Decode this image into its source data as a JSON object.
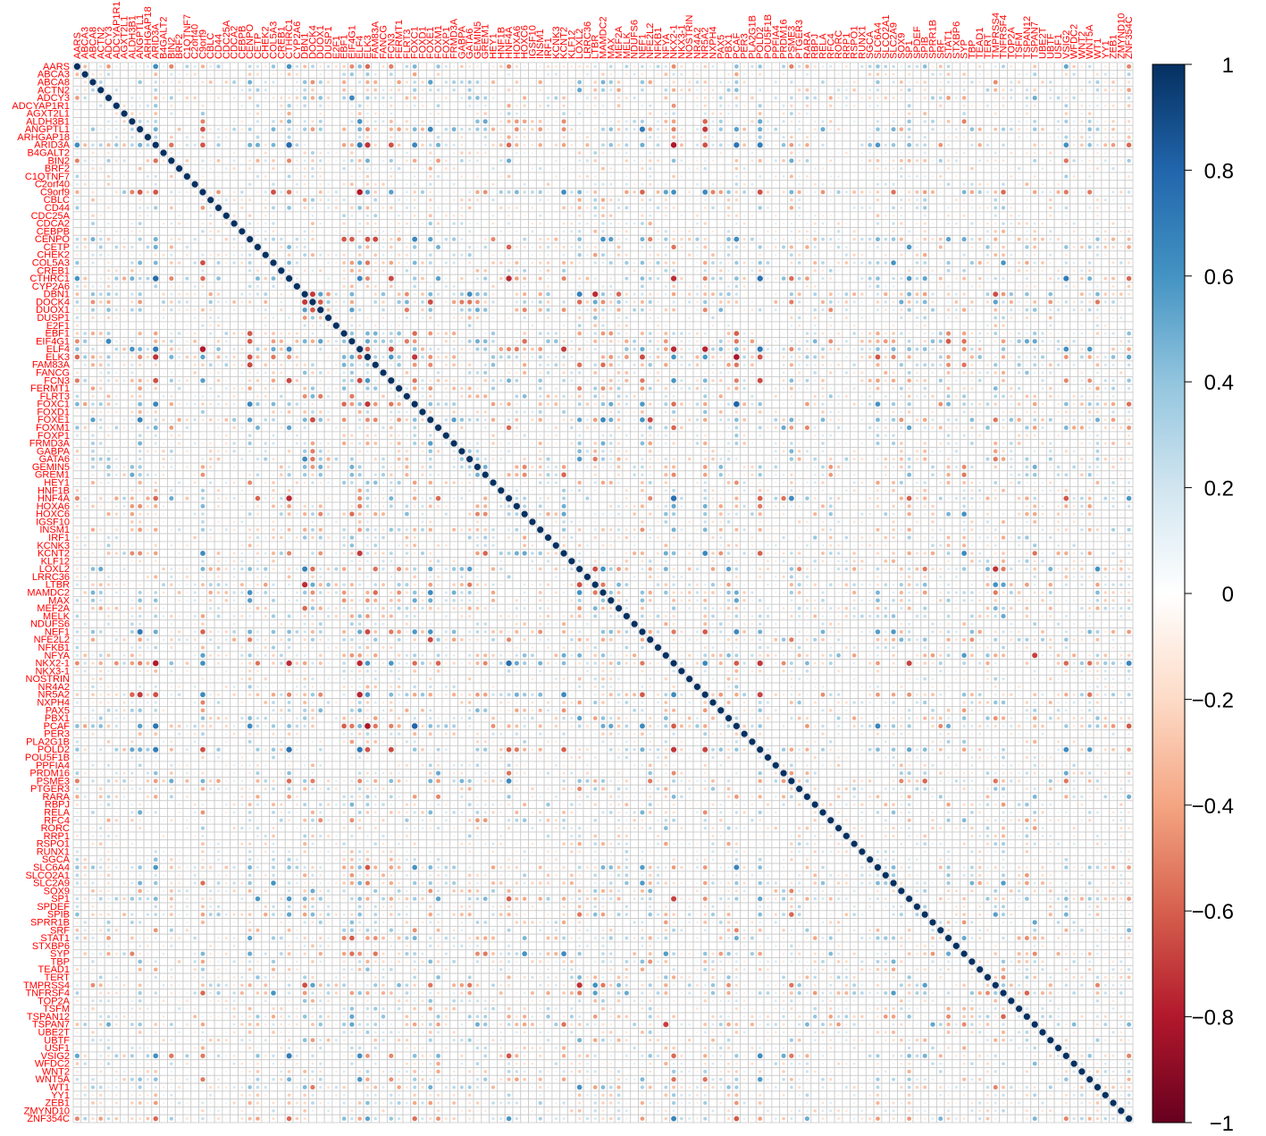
{
  "chart_data": {
    "type": "heatmap",
    "method": "circle",
    "title": "",
    "xlabel": "",
    "ylabel": "",
    "diagonal_value": 1,
    "value_range": [
      -1,
      1
    ],
    "label_color": "#ff0000",
    "grid_color": "#c8c8c8",
    "legend": {
      "placement": "right",
      "ticks": [
        "1",
        "0.8",
        "0.6",
        "0.4",
        "0.2",
        "0",
        "−0.2",
        "−0.4",
        "−0.6",
        "−0.8",
        "−1"
      ],
      "tick_values": [
        1,
        0.8,
        0.6,
        0.4,
        0.2,
        0,
        -0.2,
        -0.4,
        -0.6,
        -0.8,
        -1
      ]
    },
    "colorscale": [
      "#67001f",
      "#b2182b",
      "#d6604d",
      "#f4a582",
      "#fddbc7",
      "#ffffff",
      "#d1e5f0",
      "#92c5de",
      "#4393c3",
      "#2166ac",
      "#053061"
    ],
    "variables": [
      "AARS",
      "ABCA3",
      "ABCA8",
      "ACTN2",
      "ADCY3",
      "ADCYAP1R1",
      "AGXT2L1",
      "ALDH3B1",
      "ANGPTL1",
      "ARHGAP18",
      "ARID3A",
      "B4GALT2",
      "BIN2",
      "BRF2",
      "C1QTNF7",
      "C2orf40",
      "C9orf9",
      "CBLC",
      "CD44",
      "CDC25A",
      "CDCA2",
      "CEBPB",
      "CENPO",
      "CETP",
      "CHEK2",
      "COL5A3",
      "CREB1",
      "CTHRC1",
      "CYP2A6",
      "DBN1",
      "DOCK4",
      "DUOX1",
      "DUSP1",
      "E2F1",
      "EBF1",
      "EIF4G1",
      "ELF4",
      "ELK3",
      "FAM83A",
      "FANCG",
      "FCN3",
      "FERMT1",
      "FLRT3",
      "FOXC1",
      "FOXD1",
      "FOXE1",
      "FOXM1",
      "FOXP1",
      "FRMD3A",
      "GABPA",
      "GATA6",
      "GEMIN5",
      "GREM1",
      "HEY1",
      "HNF1B",
      "HNF4A",
      "HOXA6",
      "HOXC6",
      "IGSF10",
      "INSM1",
      "IRF1",
      "KCNK3",
      "KCNT2",
      "KLF12",
      "LOXL2",
      "LRRC36",
      "LTBR",
      "MAMDC2",
      "MAX",
      "MEF2A",
      "MELK",
      "NDUFS6",
      "NEF1",
      "NFE2L2",
      "NFKB1",
      "NFYA",
      "NKX2-1",
      "NKX3-1",
      "NOSTRIN",
      "NR4A2",
      "NR5A2",
      "NXPH4",
      "PAX5",
      "PBX1",
      "PCAF",
      "PER3",
      "PLA2G1B",
      "POLD2",
      "POU5F1B",
      "PPFIA4",
      "PRDM16",
      "PSME3",
      "PTGER3",
      "RARA",
      "RBPJ",
      "RELA",
      "RFC4",
      "RORC",
      "RRP1",
      "RSPO1",
      "RUNX1",
      "SGCA",
      "SLC6A4",
      "SLCO2A1",
      "SLC2A9",
      "SOX9",
      "SP1",
      "SPDEF",
      "SPIB",
      "SPRR1B",
      "SRF",
      "STAT1",
      "STXBP6",
      "SYP",
      "TBP",
      "TEAD1",
      "TERT",
      "TMPRSS4",
      "TNFRSF4",
      "TOP2A",
      "TSFM",
      "TSPAN12",
      "TSPAN7",
      "UBE2T",
      "UBTF",
      "USF1",
      "VSIG2",
      "WFDC2",
      "WNT2",
      "WNT5A",
      "WT1",
      "YY1",
      "ZEB1",
      "ZMYND10",
      "ZNF354C"
    ]
  }
}
